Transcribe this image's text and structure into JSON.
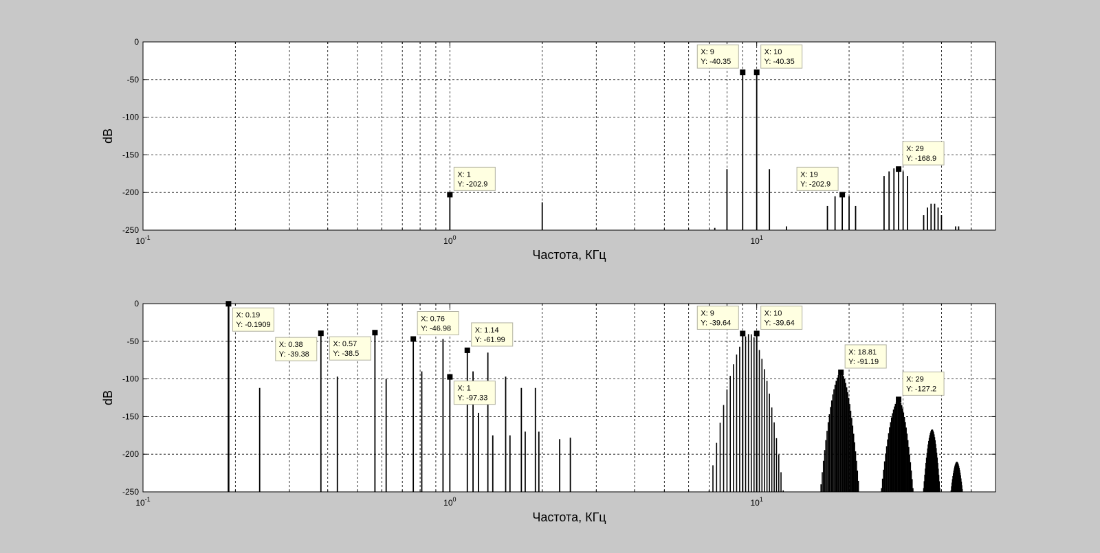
{
  "chart_data": [
    {
      "type": "stem",
      "xlabel": "Частота, КГц",
      "ylabel": "dB",
      "xscale": "log",
      "xlim": [
        0.1,
        60
      ],
      "ylim": [
        -250,
        0
      ],
      "grid": true,
      "x_tick_labels": [
        "10",
        "10",
        "10"
      ],
      "x_tick_exponents": [
        "-1",
        "0",
        "1"
      ],
      "y_ticks": [
        0,
        -50,
        -100,
        -150,
        -200,
        -250
      ],
      "stems": [
        {
          "x": 1,
          "y": -202.9
        },
        {
          "x": 2,
          "y": -213
        },
        {
          "x": 7.3,
          "y": -247
        },
        {
          "x": 8,
          "y": -169
        },
        {
          "x": 9,
          "y": -40.35
        },
        {
          "x": 10,
          "y": -40.35
        },
        {
          "x": 11,
          "y": -169
        },
        {
          "x": 12.5,
          "y": -245
        },
        {
          "x": 17,
          "y": -218
        },
        {
          "x": 18,
          "y": -205
        },
        {
          "x": 19,
          "y": -202.9
        },
        {
          "x": 20,
          "y": -205
        },
        {
          "x": 21,
          "y": -218
        },
        {
          "x": 26,
          "y": -178
        },
        {
          "x": 27,
          "y": -172
        },
        {
          "x": 28,
          "y": -168
        },
        {
          "x": 29,
          "y": -168.9
        },
        {
          "x": 30,
          "y": -172
        },
        {
          "x": 31,
          "y": -178
        },
        {
          "x": 35,
          "y": -230
        },
        {
          "x": 36,
          "y": -220
        },
        {
          "x": 37,
          "y": -215
        },
        {
          "x": 38,
          "y": -215
        },
        {
          "x": 39,
          "y": -220
        },
        {
          "x": 40,
          "y": -230
        },
        {
          "x": 44.5,
          "y": -245
        },
        {
          "x": 45.5,
          "y": -245
        }
      ],
      "datatips": [
        {
          "x": 1,
          "y": -202.9,
          "x_text": "X: 1",
          "y_text": "Y: -202.9",
          "side": "right"
        },
        {
          "x": 9,
          "y": -40.35,
          "x_text": "X: 9",
          "y_text": "Y: -40.35",
          "side": "left"
        },
        {
          "x": 10,
          "y": -40.35,
          "x_text": "X: 10",
          "y_text": "Y: -40.35",
          "side": "right"
        },
        {
          "x": 19,
          "y": -202.9,
          "x_text": "X: 19",
          "y_text": "Y: -202.9",
          "side": "left"
        },
        {
          "x": 29,
          "y": -168.9,
          "x_text": "X: 29",
          "y_text": "Y: -168.9",
          "side": "right"
        }
      ]
    },
    {
      "type": "stem",
      "xlabel": "Частота, КГц",
      "ylabel": "dB",
      "xscale": "log",
      "xlim": [
        0.1,
        60
      ],
      "ylim": [
        -250,
        0
      ],
      "grid": true,
      "x_tick_labels": [
        "10",
        "10",
        "10"
      ],
      "x_tick_exponents": [
        "-1",
        "0",
        "1"
      ],
      "y_ticks": [
        0,
        -50,
        -100,
        -150,
        -200,
        -250
      ],
      "stems": [
        {
          "x": 0.19,
          "y": -0.19
        },
        {
          "x": 0.24,
          "y": -112
        },
        {
          "x": 0.38,
          "y": -39.38
        },
        {
          "x": 0.43,
          "y": -97
        },
        {
          "x": 0.57,
          "y": -38.5
        },
        {
          "x": 0.62,
          "y": -100
        },
        {
          "x": 0.76,
          "y": -46.98
        },
        {
          "x": 0.81,
          "y": -90
        },
        {
          "x": 0.95,
          "y": -47
        },
        {
          "x": 1.0,
          "y": -97.33
        },
        {
          "x": 1.14,
          "y": -61.99
        },
        {
          "x": 1.19,
          "y": -90
        },
        {
          "x": 1.24,
          "y": -145
        },
        {
          "x": 1.33,
          "y": -65
        },
        {
          "x": 1.38,
          "y": -175
        },
        {
          "x": 1.52,
          "y": -97
        },
        {
          "x": 1.57,
          "y": -175
        },
        {
          "x": 1.71,
          "y": -112
        },
        {
          "x": 1.76,
          "y": -170
        },
        {
          "x": 1.9,
          "y": -112
        },
        {
          "x": 1.95,
          "y": -170
        },
        {
          "x": 2.28,
          "y": -180
        },
        {
          "x": 2.47,
          "y": -178
        }
      ],
      "clusters": [
        {
          "x_start": 7.0,
          "x_end": 12.2,
          "step": 0.2,
          "peak_x": 9.5,
          "peak_y": -40,
          "edge_y": -248,
          "centers": [
            9,
            10
          ]
        },
        {
          "x_start": 16.2,
          "x_end": 21.5,
          "step": 0.15,
          "peak_x": 18.81,
          "peak_y": -91.19,
          "edge_y": -240
        },
        {
          "x_start": 25.5,
          "x_end": 32.3,
          "step": 0.2,
          "peak_x": 29,
          "peak_y": -127.2,
          "edge_y": -245
        },
        {
          "x_start": 35.0,
          "x_end": 39.5,
          "step": 0.15,
          "peak_x": 37.3,
          "peak_y": -167,
          "edge_y": -245
        },
        {
          "x_start": 43.0,
          "x_end": 46.8,
          "step": 0.15,
          "peak_x": 44.9,
          "peak_y": -210,
          "edge_y": -248
        }
      ],
      "datatips": [
        {
          "x": 0.19,
          "y": -0.1909,
          "x_text": "X: 0.19",
          "y_text": "Y: -0.1909",
          "side": "right-below"
        },
        {
          "x": 0.38,
          "y": -39.38,
          "x_text": "X: 0.38",
          "y_text": "Y: -39.38",
          "side": "left-below"
        },
        {
          "x": 0.57,
          "y": -38.5,
          "x_text": "X: 0.57",
          "y_text": "Y: -38.5",
          "side": "left-below"
        },
        {
          "x": 0.76,
          "y": -46.98,
          "x_text": "X: 0.76",
          "y_text": "Y: -46.98",
          "side": "right"
        },
        {
          "x": 1.14,
          "y": -61.99,
          "x_text": "X: 1.14",
          "y_text": "Y: -61.99",
          "side": "right"
        },
        {
          "x": 1.0,
          "y": -97.33,
          "x_text": "X: 1",
          "y_text": "Y: -97.33",
          "side": "right-below"
        },
        {
          "x": 9,
          "y": -39.64,
          "x_text": "X: 9",
          "y_text": "Y: -39.64",
          "side": "left"
        },
        {
          "x": 10,
          "y": -39.64,
          "x_text": "X: 10",
          "y_text": "Y: -39.64",
          "side": "right"
        },
        {
          "x": 18.81,
          "y": -91.19,
          "x_text": "X: 18.81",
          "y_text": "Y: -91.19",
          "side": "right"
        },
        {
          "x": 29,
          "y": -127.2,
          "x_text": "X: 29",
          "y_text": "Y: -127.2",
          "side": "right"
        }
      ]
    }
  ]
}
